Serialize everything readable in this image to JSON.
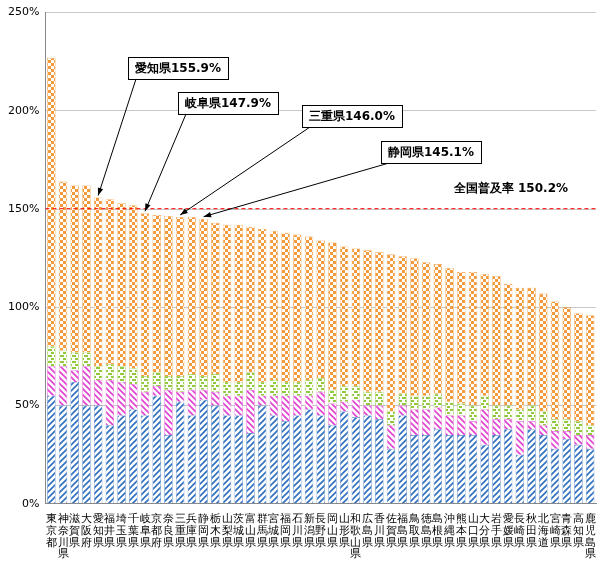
{
  "chart_data": {
    "type": "bar",
    "stacked": true,
    "grid": true,
    "categories": [
      "東京都",
      "神奈川県",
      "滋賀県",
      "大阪府",
      "愛知県",
      "福井県",
      "埼玉県",
      "千葉県",
      "岐阜県",
      "京都府",
      "奈良県",
      "三重県",
      "兵庫県",
      "静岡県",
      "栃木県",
      "山梨県",
      "茨城県",
      "富山県",
      "群馬県",
      "宮城県",
      "福岡県",
      "石川県",
      "新潟県",
      "長野県",
      "岡山県",
      "山形県",
      "和歌山県",
      "広島県",
      "香川県",
      "佐賀県",
      "福島県",
      "鳥取県",
      "徳島県",
      "島根県",
      "沖縄県",
      "熊本県",
      "山口県",
      "大分県",
      "岩手県",
      "愛媛県",
      "長崎県",
      "秋田県",
      "北海道",
      "宮崎県",
      "青森県",
      "高知県",
      "鹿児島県"
    ],
    "series": [
      {
        "color": "#2f6fc0",
        "values": [
          55,
          50,
          62,
          50,
          50,
          40,
          45,
          48,
          45,
          55,
          35,
          52,
          45,
          53,
          50,
          45,
          45,
          36,
          50,
          45,
          42,
          45,
          48,
          45,
          40,
          47,
          44,
          45,
          43,
          28,
          45,
          35,
          35,
          38,
          35,
          35,
          35,
          30,
          35,
          38,
          25,
          38,
          35,
          28,
          33,
          30,
          28
        ]
      },
      {
        "color": "#e040d0",
        "values": [
          15,
          20,
          6,
          20,
          13,
          23,
          17,
          13,
          12,
          5,
          23,
          5,
          13,
          5,
          7,
          10,
          10,
          22,
          5,
          10,
          13,
          10,
          7,
          12,
          11,
          5,
          9,
          5,
          7,
          12,
          5,
          13,
          13,
          11,
          10,
          10,
          7,
          18,
          8,
          5,
          17,
          4,
          5,
          9,
          4,
          5,
          7
        ]
      },
      {
        "color": "#92c83e",
        "values": [
          10,
          8,
          9,
          7,
          7,
          8,
          8,
          8,
          8,
          7,
          7,
          8,
          8,
          7,
          9,
          7,
          7,
          9,
          7,
          8,
          7,
          7,
          8,
          7,
          7,
          8,
          7,
          7,
          7,
          7,
          6,
          7,
          7,
          7,
          7,
          6,
          8,
          7,
          7,
          7,
          6,
          8,
          7,
          6,
          6,
          7,
          5
        ]
      },
      {
        "color": "#f39a3c",
        "values": [
          147,
          86,
          85,
          85,
          85.9,
          84,
          83,
          83,
          82.9,
          80,
          81.5,
          81,
          80,
          80.1,
          77,
          80,
          80,
          74,
          78,
          76,
          76,
          75,
          73,
          70,
          75,
          71,
          70,
          72,
          71,
          80,
          70,
          70,
          68,
          66,
          68,
          67,
          68,
          62,
          66,
          62,
          62,
          60,
          60,
          60,
          57,
          55,
          56
        ]
      }
    ],
    "ylim": [
      0,
      250
    ],
    "yticks": [
      {
        "value": 0,
        "label": "0%"
      },
      {
        "value": 50,
        "label": "50%"
      },
      {
        "value": 100,
        "label": "100%"
      },
      {
        "value": 150,
        "label": "150%"
      },
      {
        "value": 200,
        "label": "200%"
      },
      {
        "value": 250,
        "label": "250%"
      }
    ],
    "annotations": [
      {
        "text": "愛知県155.9%",
        "category": "愛知県",
        "value": 155.9
      },
      {
        "text": "岐阜県147.9%",
        "category": "岐阜県",
        "value": 147.9
      },
      {
        "text": "三重県146.0%",
        "category": "三重県",
        "value": 146.0
      },
      {
        "text": "静岡県145.1%",
        "category": "静岡県",
        "value": 145.1
      }
    ],
    "reference_line": {
      "value": 150.2,
      "label": "全国普及率 150.2%",
      "color": "#ff0000",
      "line_style": "dashed"
    }
  }
}
